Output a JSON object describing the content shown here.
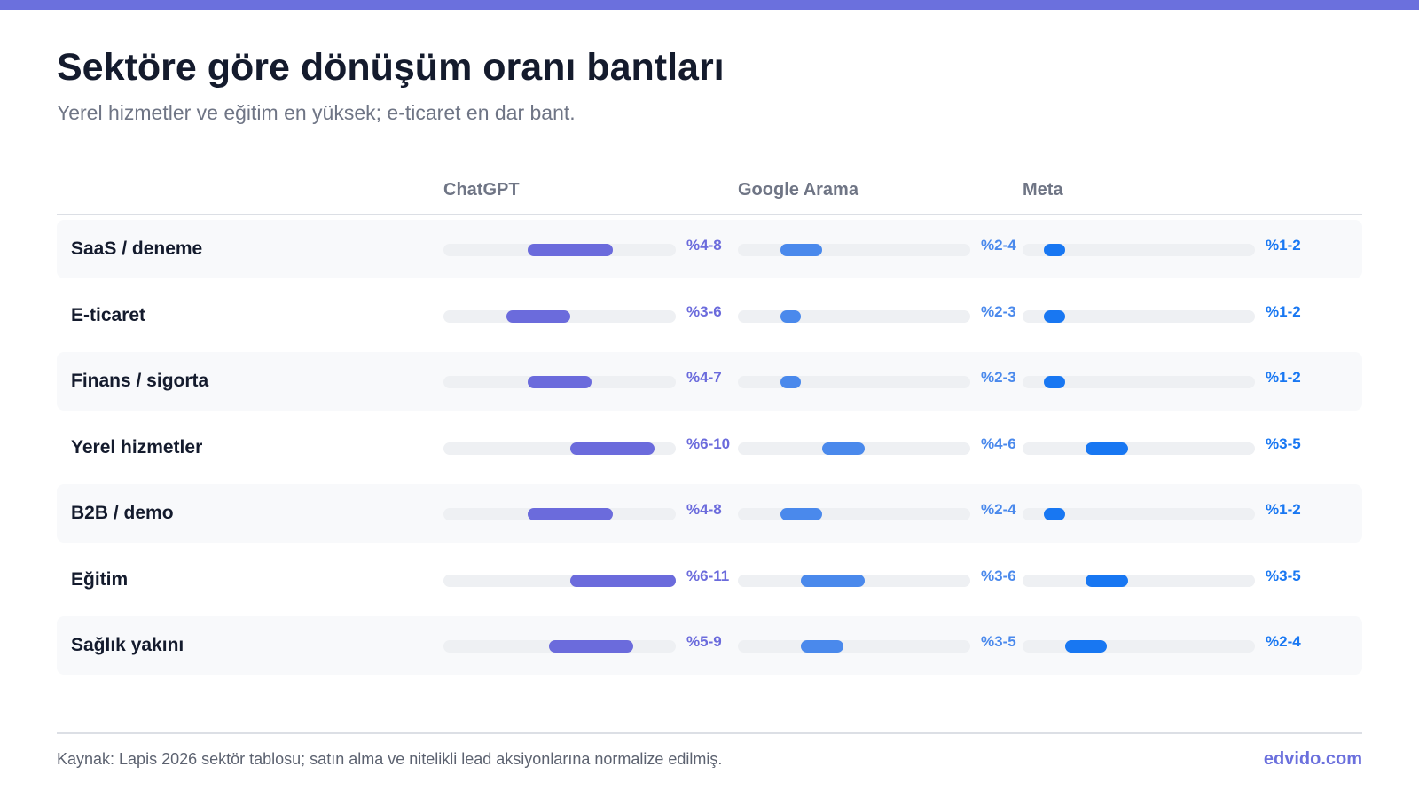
{
  "header": {
    "title": "Sektöre göre dönüşüm oranı bantları",
    "subtitle": "Yerel hizmetler ve eğitim en yüksek; e-ticaret en dar bant."
  },
  "footer": {
    "source": "Kaynak: Lapis 2026 sektör tablosu; satın alma ve nitelikli lead aksiyonlarına normalize edilmiş.",
    "brand": "edvido.com"
  },
  "chart_data": {
    "type": "bar",
    "subtype": "range-band",
    "xlim": [
      0,
      11
    ],
    "grid": false,
    "categories": [
      "SaaS / deneme",
      "E-ticaret",
      "Finans / sigorta",
      "Yerel hizmetler",
      "B2B / demo",
      "Eğitim",
      "Sağlık yakını"
    ],
    "series": [
      {
        "name": "ChatGPT",
        "color": "#6b6bdc",
        "ranges": [
          [
            4,
            8
          ],
          [
            3,
            6
          ],
          [
            4,
            7
          ],
          [
            6,
            10
          ],
          [
            4,
            8
          ],
          [
            6,
            11
          ],
          [
            5,
            9
          ]
        ],
        "labels": [
          "%4-8",
          "%3-6",
          "%4-7",
          "%6-10",
          "%4-8",
          "%6-11",
          "%5-9"
        ]
      },
      {
        "name": "Google Arama",
        "color": "#4a89ec",
        "ranges": [
          [
            2,
            4
          ],
          [
            2,
            3
          ],
          [
            2,
            3
          ],
          [
            4,
            6
          ],
          [
            2,
            4
          ],
          [
            3,
            6
          ],
          [
            3,
            5
          ]
        ],
        "labels": [
          "%2-4",
          "%2-3",
          "%2-3",
          "%4-6",
          "%2-4",
          "%3-6",
          "%3-5"
        ]
      },
      {
        "name": "Meta",
        "color": "#1877f2",
        "ranges": [
          [
            1,
            2
          ],
          [
            1,
            2
          ],
          [
            1,
            2
          ],
          [
            3,
            5
          ],
          [
            1,
            2
          ],
          [
            3,
            5
          ],
          [
            2,
            4
          ]
        ],
        "labels": [
          "%1-2",
          "%1-2",
          "%1-2",
          "%3-5",
          "%1-2",
          "%3-5",
          "%2-4"
        ]
      }
    ]
  }
}
